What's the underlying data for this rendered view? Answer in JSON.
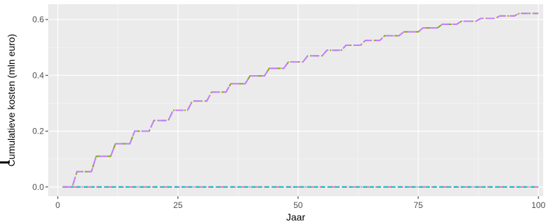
{
  "chart_data": {
    "type": "line",
    "title": "",
    "xlabel": "Jaar",
    "ylabel": "Cumulatieve kosten (mln euro)",
    "xlim": [
      -2,
      101
    ],
    "ylim": [
      -0.033,
      0.655
    ],
    "x_ticks": [
      0,
      25,
      50,
      75,
      100
    ],
    "x_tick_labels": [
      "0",
      "25",
      "50",
      "75",
      "100"
    ],
    "y_ticks": [
      0.0,
      0.2,
      0.4,
      0.6
    ],
    "y_tick_labels": [
      "0.0",
      "0.2",
      "0.4",
      "0.6"
    ],
    "grid": true,
    "legend": "none",
    "background": "#ebebeb",
    "series": [
      {
        "color": "#ff69b4",
        "dash": "dashdot",
        "x": [
          1,
          100
        ],
        "y": [
          0,
          0
        ]
      },
      {
        "color": "#00bfc4",
        "dash": "dashed",
        "x": [
          1,
          100
        ],
        "y": [
          0,
          0
        ]
      },
      {
        "color": "#7cae00",
        "dash": "dashdot",
        "x": [
          1,
          3,
          4,
          7,
          8,
          11,
          12,
          15,
          16,
          19,
          20,
          23,
          24,
          27,
          28,
          31,
          32,
          35,
          36,
          39,
          40,
          43,
          44,
          47,
          48,
          51,
          52,
          55,
          56,
          59,
          60,
          63,
          64,
          67,
          68,
          71,
          72,
          75,
          76,
          79,
          80,
          83,
          84,
          87,
          88,
          91,
          92,
          95,
          96,
          100
        ],
        "y": [
          0,
          0,
          0.055,
          0.055,
          0.11,
          0.11,
          0.155,
          0.155,
          0.2,
          0.2,
          0.238,
          0.238,
          0.275,
          0.275,
          0.308,
          0.308,
          0.34,
          0.34,
          0.37,
          0.37,
          0.398,
          0.398,
          0.425,
          0.425,
          0.448,
          0.448,
          0.47,
          0.47,
          0.49,
          0.49,
          0.508,
          0.508,
          0.525,
          0.525,
          0.542,
          0.542,
          0.556,
          0.556,
          0.57,
          0.57,
          0.583,
          0.583,
          0.594,
          0.594,
          0.604,
          0.604,
          0.613,
          0.613,
          0.622,
          0.622
        ]
      },
      {
        "color": "#c77cff",
        "dash": "longdash",
        "x": [
          1,
          3,
          4,
          7,
          8,
          11,
          12,
          15,
          16,
          19,
          20,
          23,
          24,
          27,
          28,
          31,
          32,
          35,
          36,
          39,
          40,
          43,
          44,
          47,
          48,
          51,
          52,
          55,
          56,
          59,
          60,
          63,
          64,
          67,
          68,
          71,
          72,
          75,
          76,
          79,
          80,
          83,
          84,
          87,
          88,
          91,
          92,
          95,
          96,
          100
        ],
        "y": [
          0,
          0,
          0.055,
          0.055,
          0.11,
          0.11,
          0.155,
          0.155,
          0.2,
          0.2,
          0.238,
          0.238,
          0.275,
          0.275,
          0.308,
          0.308,
          0.34,
          0.34,
          0.37,
          0.37,
          0.398,
          0.398,
          0.425,
          0.425,
          0.448,
          0.448,
          0.47,
          0.47,
          0.49,
          0.49,
          0.508,
          0.508,
          0.525,
          0.525,
          0.542,
          0.542,
          0.556,
          0.556,
          0.57,
          0.57,
          0.583,
          0.583,
          0.594,
          0.594,
          0.604,
          0.604,
          0.613,
          0.613,
          0.622,
          0.622
        ]
      }
    ]
  }
}
